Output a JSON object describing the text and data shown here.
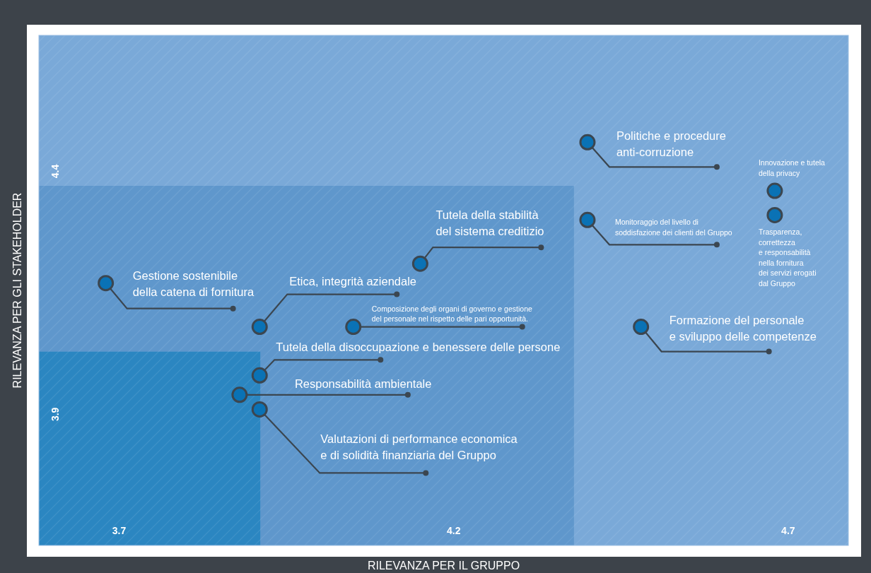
{
  "chart_data": {
    "type": "scatter",
    "xlabel": "RILEVANZA PER IL GRUPPO",
    "ylabel": "RILEVANZA PER GLI STAKEHOLDER",
    "xlim": [
      3.58,
      4.79
    ],
    "ylim": [
      3.63,
      4.68
    ],
    "xticks": [
      3.7,
      4.2,
      4.7
    ],
    "yticks": [
      3.9,
      4.4
    ],
    "marker": "circle",
    "series": [
      {
        "color": "#0a72b5",
        "x": [
          3.68,
          3.91,
          4.15,
          4.05,
          3.91,
          3.88,
          3.91,
          4.4,
          4.4,
          4.68,
          4.68,
          4.48
        ],
        "values": [
          4.17,
          4.08,
          4.21,
          4.08,
          3.98,
          3.94,
          3.91,
          4.46,
          4.3,
          4.36,
          4.31,
          4.08
        ]
      }
    ],
    "annotations": [
      {
        "text": "Gestione sostenibile\ndella catena di fornitura",
        "x": 3.68,
        "y": 4.17
      },
      {
        "text": "Etica, integrità aziendale",
        "x": 3.91,
        "y": 4.08
      },
      {
        "text": "Tutela della stabilità\ndel sistema creditizio",
        "x": 4.15,
        "y": 4.21
      },
      {
        "text": "Composizione degli organi di governo e gestione\ndel personale nel rispetto delle pari opportunità.",
        "x": 4.05,
        "y": 4.08
      },
      {
        "text": "Tutela della disoccupazione e benessere delle persone",
        "x": 3.91,
        "y": 3.98
      },
      {
        "text": "Responsabilità ambientale",
        "x": 3.88,
        "y": 3.94
      },
      {
        "text": "Valutazioni di performance economica\ne di solidità finanziaria del Gruppo",
        "x": 3.91,
        "y": 3.91
      },
      {
        "text": "Politiche e procedure\nanti-corruzione",
        "x": 4.4,
        "y": 4.46
      },
      {
        "text": "Monitoraggio del livello di\nsoddisfazione dei clienti del Gruppo",
        "x": 4.4,
        "y": 4.3
      },
      {
        "text": "Innovazione e tutela\ndella privacy",
        "x": 4.68,
        "y": 4.36
      },
      {
        "text": "Trasparenza,\ncorrettezza\ne responsabilità\nnella fornitura\ndei servizi erogati\ndal Gruppo",
        "x": 4.68,
        "y": 4.31
      },
      {
        "text": "Formazione del personale\ne sviluppo delle competenze",
        "x": 4.48,
        "y": 4.08
      }
    ]
  }
}
